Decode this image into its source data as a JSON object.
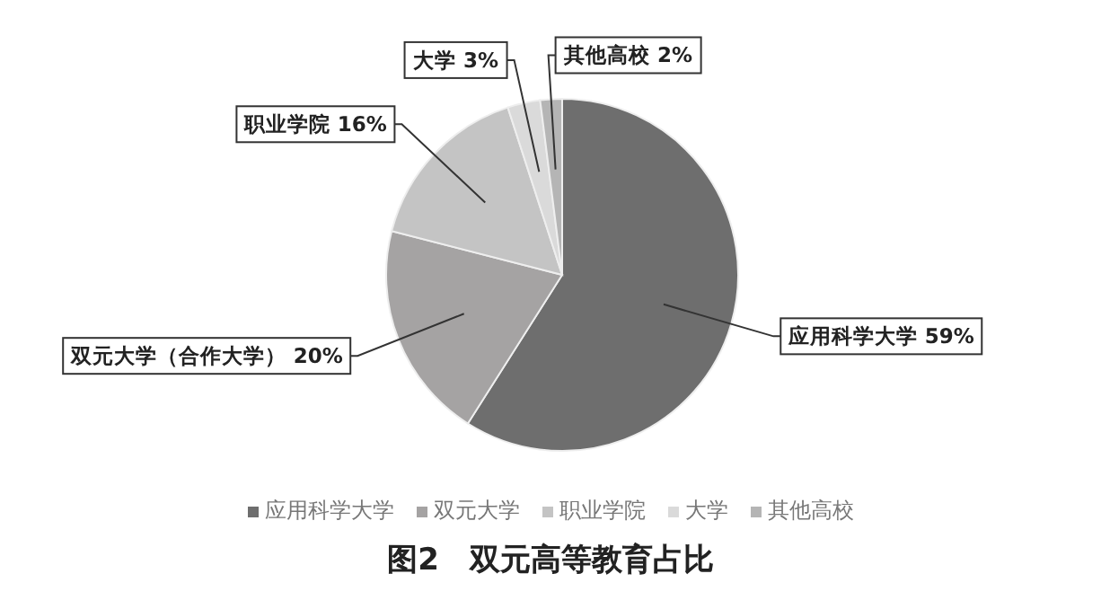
{
  "chart_data": {
    "type": "pie",
    "title": "图2　双元高等教育占比",
    "categories": [
      "应用科学大学",
      "双元大学",
      "职业学院",
      "大学",
      "其他高校"
    ],
    "values": [
      59,
      20,
      16,
      3,
      2
    ],
    "colors": [
      "#6e6e6e",
      "#a5a3a3",
      "#c4c4c4",
      "#dadada",
      "#b5b5b5"
    ],
    "value_labels": [
      "应用科学大学 59%",
      "双元大学（合作大学） 20%",
      "职业学院 16%",
      "大学 3%",
      "其他高校 2%"
    ],
    "legend": "bottom"
  }
}
